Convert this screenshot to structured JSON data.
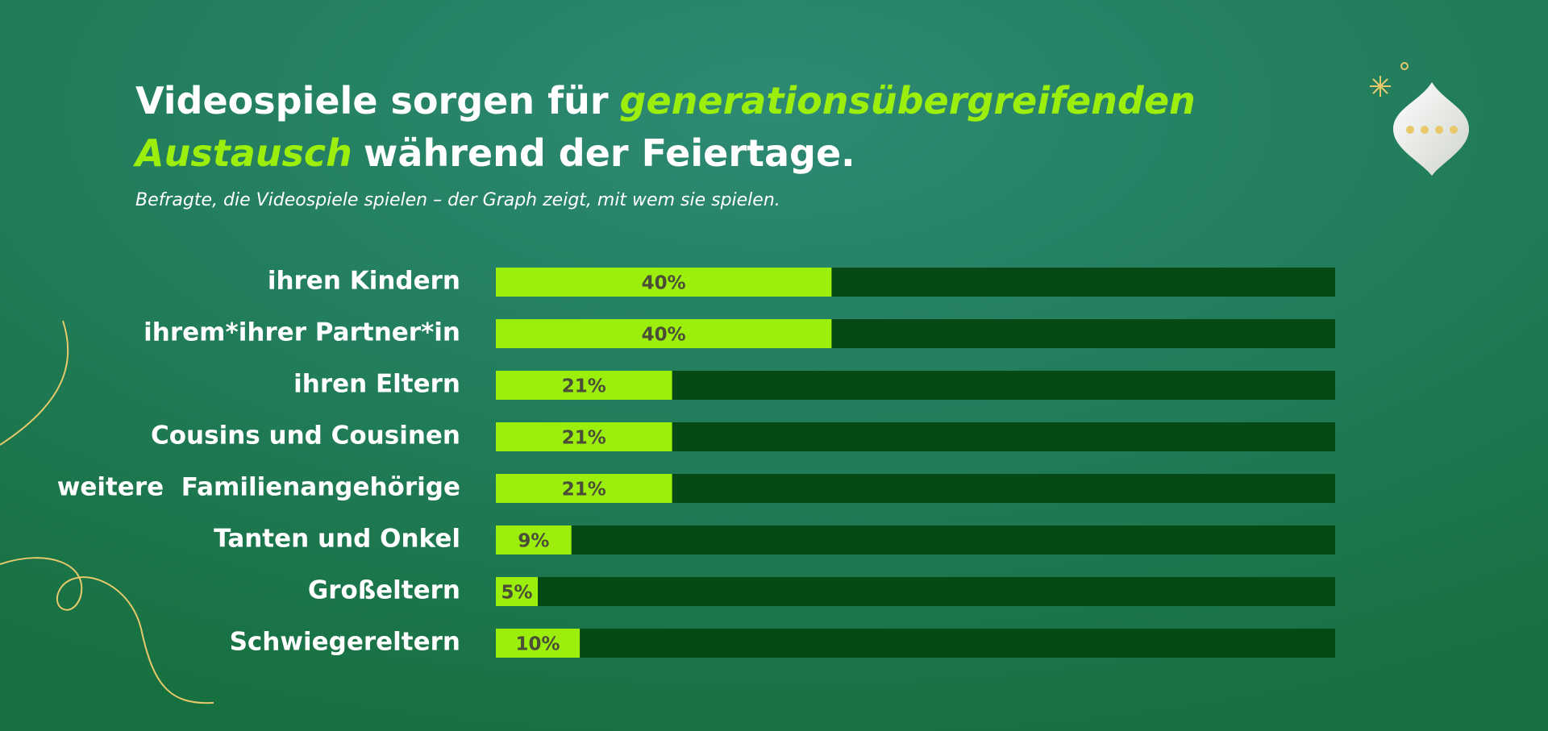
{
  "chart_data": {
    "type": "hbar",
    "title": [
      "Videospiele sorgen für",
      "generationsübergreifenden",
      "Austausch",
      "während der Feiertage."
    ],
    "subtitle": "Befragte, die Videospiele spielen – der Graph zeigt, mit wem sie spielen.",
    "categories": [
      "ihren Kindern",
      "ihrem*ihrer Partner*in",
      "ihren Eltern",
      "Cousins und Cousinen",
      "weitere  Familienangehörige",
      "Tanten und Onkel",
      "Großeltern",
      "Schwiegereltern"
    ],
    "values": [
      40,
      40,
      21,
      21,
      21,
      9,
      5,
      10
    ],
    "value_labels": [
      "40%",
      "40%",
      "21%",
      "21%",
      "21%",
      "9%",
      "5%",
      "10%"
    ],
    "color": "#9cef0c",
    "xlim": [
      0,
      100
    ]
  }
}
